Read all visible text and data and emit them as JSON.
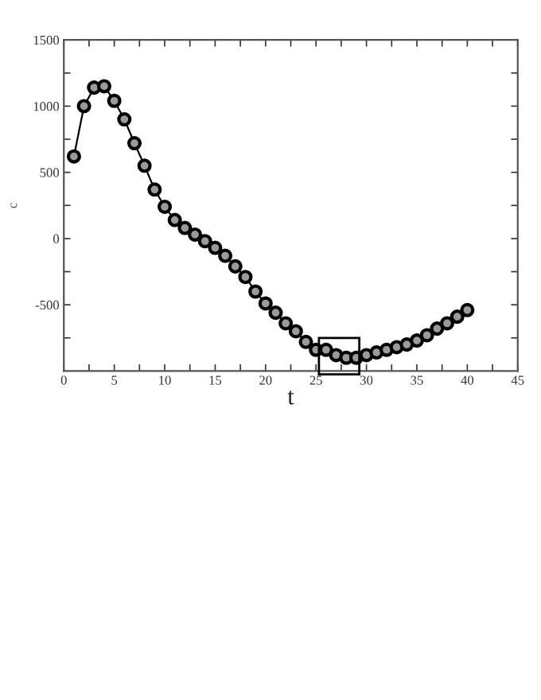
{
  "chart_data": {
    "type": "line",
    "xlabel": "t",
    "ylabel": "c",
    "x": [
      1,
      2,
      3,
      4,
      5,
      6,
      7,
      8,
      9,
      10,
      11,
      12,
      13,
      14,
      15,
      16,
      17,
      18,
      19,
      20,
      21,
      22,
      23,
      24,
      25,
      26,
      27,
      28,
      29,
      30,
      31,
      32,
      33,
      34,
      35,
      36,
      37,
      38,
      39,
      40
    ],
    "series": [
      {
        "color": "#000000",
        "values": [
          620,
          1000,
          1140,
          1150,
          1040,
          900,
          720,
          550,
          370,
          240,
          140,
          80,
          30,
          -20,
          -70,
          -130,
          -210,
          -290,
          -400,
          -490,
          -560,
          -640,
          -700,
          -780,
          -840,
          -840,
          -880,
          -900,
          -900,
          -880,
          -860,
          -840,
          -820,
          -800,
          -770,
          -730,
          -680,
          -640,
          -590,
          -540
        ]
      }
    ],
    "marker": "circle",
    "line_style": "solid",
    "xlim": [
      0,
      45
    ],
    "ylim": [
      -1000,
      1500
    ],
    "xticks": [
      0,
      {
        "value": 2.5,
        "label": null
      },
      5,
      {
        "value": 7.5,
        "label": null
      },
      10,
      {
        "value": 12.5,
        "label": null
      },
      15,
      {
        "value": 17.5,
        "label": null
      },
      20,
      {
        "value": 22.5,
        "label": null
      },
      25,
      {
        "value": 27.5,
        "label": null
      },
      30,
      {
        "value": 32.5,
        "label": null
      },
      35,
      {
        "value": 37.5,
        "label": null
      },
      40,
      {
        "value": 42.5,
        "label": null
      },
      45
    ],
    "yticks": [
      {
        "value": -750,
        "label": null
      },
      -500,
      {
        "value": -250,
        "label": null
      },
      0,
      {
        "value": 250,
        "label": null
      },
      500,
      {
        "value": 750,
        "label": null
      },
      1000,
      {
        "value": 1250,
        "label": null
      },
      1500
    ],
    "grid": false,
    "legend": false
  }
}
